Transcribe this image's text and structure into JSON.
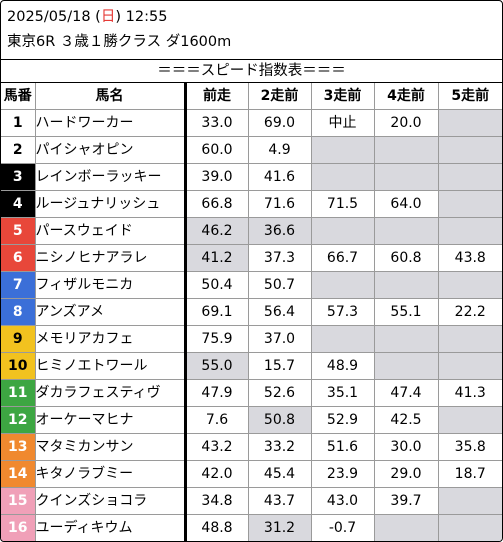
{
  "header": {
    "date": "2025/05/18",
    "day_open": " (",
    "day": "日",
    "day_close": ") ",
    "time": "12:55",
    "race": "東京6R ３歳１勝クラス ダ1600m"
  },
  "subtitle": "＝＝＝スピード指数表＝＝＝",
  "columns": [
    "馬番",
    "馬名",
    "前走",
    "2走前",
    "3走前",
    "4走前",
    "5走前"
  ],
  "colors": {
    "frame1": "#ffffff",
    "frame2": "#000000",
    "frame3": "#e8473a",
    "frame4": "#3b6fd8",
    "frame5": "#f2c21f",
    "frame6": "#3da642",
    "frame7": "#f0892f",
    "frame8": "#f0a0b8",
    "empty_cell": "#d9d9de"
  },
  "rows": [
    {
      "num": "1",
      "frame": 1,
      "name": "ハードワーカー",
      "v": [
        "33.0",
        "69.0",
        "中止",
        "20.0",
        ""
      ]
    },
    {
      "num": "2",
      "frame": 1,
      "name": "パイシャオピン",
      "v": [
        "60.0",
        "4.9",
        "",
        "",
        ""
      ]
    },
    {
      "num": "3",
      "frame": 2,
      "name": "レインボーラッキー",
      "v": [
        "39.0",
        "41.6",
        "",
        "",
        ""
      ]
    },
    {
      "num": "4",
      "frame": 2,
      "name": "ルージュナリッシュ",
      "v": [
        "66.8",
        "71.6",
        "71.5",
        "64.0",
        ""
      ]
    },
    {
      "num": "5",
      "frame": 3,
      "name": "パースウェイド",
      "v": [
        "46.2",
        "36.6",
        "",
        "",
        ""
      ]
    },
    {
      "num": "6",
      "frame": 3,
      "name": "ニシノヒナアラレ",
      "v": [
        "41.2",
        "37.3",
        "66.7",
        "60.8",
        "43.8"
      ]
    },
    {
      "num": "7",
      "frame": 4,
      "name": "フィザルモニカ",
      "v": [
        "50.4",
        "50.7",
        "",
        "",
        ""
      ]
    },
    {
      "num": "8",
      "frame": 4,
      "name": "アンズアメ",
      "v": [
        "69.1",
        "56.4",
        "57.3",
        "55.1",
        "22.2"
      ]
    },
    {
      "num": "9",
      "frame": 5,
      "name": "メモリアカフェ",
      "v": [
        "75.9",
        "37.0",
        "",
        "",
        ""
      ]
    },
    {
      "num": "10",
      "frame": 5,
      "name": "ヒミノエトワール",
      "v": [
        "55.0",
        "15.7",
        "48.9",
        "",
        ""
      ]
    },
    {
      "num": "11",
      "frame": 6,
      "name": "ダカラフェスティヴ",
      "v": [
        "47.9",
        "52.6",
        "35.1",
        "47.4",
        "41.3"
      ]
    },
    {
      "num": "12",
      "frame": 6,
      "name": "オーケーマヒナ",
      "v": [
        "7.6",
        "50.8",
        "52.9",
        "42.5",
        ""
      ]
    },
    {
      "num": "13",
      "frame": 7,
      "name": "マタミカンサン",
      "v": [
        "43.2",
        "33.2",
        "51.6",
        "30.0",
        "35.8"
      ]
    },
    {
      "num": "14",
      "frame": 7,
      "name": "キタノラブミー",
      "v": [
        "42.0",
        "45.4",
        "23.9",
        "29.0",
        "18.7"
      ]
    },
    {
      "num": "15",
      "frame": 8,
      "name": "クインズショコラ",
      "v": [
        "34.8",
        "43.7",
        "43.0",
        "39.7",
        ""
      ]
    },
    {
      "num": "16",
      "frame": 8,
      "name": "ユーディキウム",
      "v": [
        "48.8",
        "31.2",
        "-0.7",
        "",
        ""
      ]
    }
  ],
  "gray_cells": {
    "5": [
      0,
      1
    ],
    "6": [
      0
    ],
    "10": [
      0
    ],
    "12": [
      1
    ],
    "16": [
      1
    ]
  }
}
